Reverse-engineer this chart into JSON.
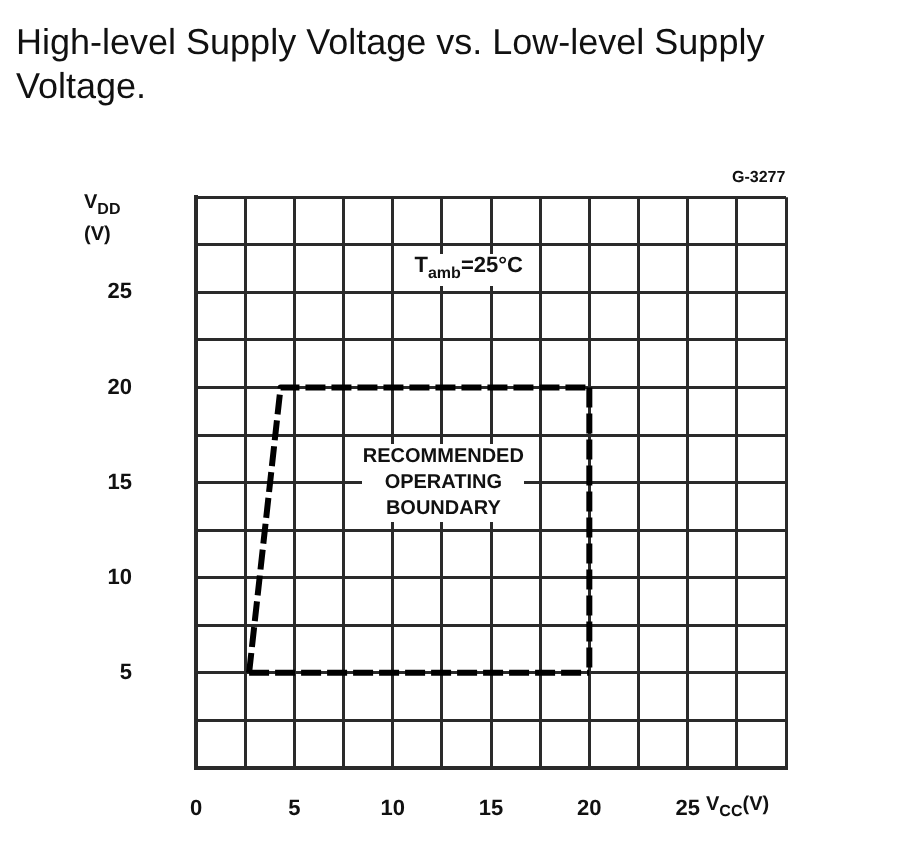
{
  "chart_data": {
    "type": "line",
    "title": "High-level Supply Voltage vs. Low-level Supply Voltage.",
    "xlabel": "V$_{CC}$(V)",
    "ylabel": "V$_{DD}$\n(V)",
    "annotations": [
      "T$_{amb}$=25°C",
      "RECOMMENDED OPERATING BOUNDARY",
      "G-3277"
    ],
    "series": [
      {
        "type": "line",
        "color": "#000000",
        "x": [
          2.7,
          4.3,
          20
        ],
        "values": [
          5,
          20,
          20
        ]
      },
      {
        "type": "line",
        "color": "#000000",
        "x": [
          20,
          20
        ],
        "values": [
          20,
          5
        ]
      },
      {
        "type": "line",
        "color": "#000000",
        "x": [
          2.7,
          20
        ],
        "values": [
          5,
          5
        ]
      }
    ],
    "xlim": [
      0,
      30
    ],
    "ylim": [
      0,
      30
    ],
    "xticks": [
      0,
      {
        "value": 2.5,
        "label": null
      },
      5,
      {
        "value": 7.5,
        "label": null
      },
      10,
      {
        "value": 12.5,
        "label": null
      },
      15,
      {
        "value": 17.5,
        "label": null
      },
      20,
      {
        "value": 22.5,
        "label": null
      },
      25,
      {
        "value": 27.5,
        "label": null
      },
      {
        "value": 30,
        "label": null
      }
    ],
    "yticks": [
      {
        "value": 0,
        "label": null
      },
      {
        "value": 2.5,
        "label": null
      },
      5,
      {
        "value": 7.5,
        "label": null
      },
      10,
      {
        "value": 12.5,
        "label": null
      },
      15,
      {
        "value": 17.5,
        "label": null
      },
      20,
      {
        "value": 22.5,
        "label": null
      },
      25,
      {
        "value": 27.5,
        "label": null
      },
      {
        "value": 30,
        "label": null
      }
    ],
    "grid": true,
    "legend": false,
    "marker": "none",
    "line_style": "dashed"
  }
}
